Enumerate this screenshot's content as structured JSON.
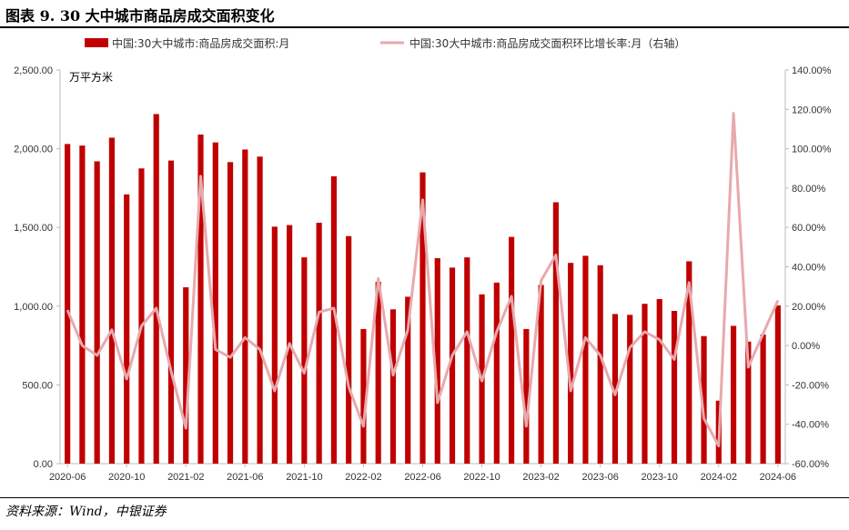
{
  "header": {
    "title": "图表 9. 30 大中城市商品房成交面积变化"
  },
  "footer": {
    "source": "资料来源：Wind，中银证券"
  },
  "chart_data": {
    "type": "bar",
    "unit_label": "万平方米",
    "series": [
      {
        "name": "中国:30大中城市:商品房成交面积:月",
        "type": "bar",
        "axis": "left",
        "color": "#C00000",
        "values": [
          2030,
          2020,
          1920,
          2070,
          1710,
          1875,
          2220,
          1925,
          1120,
          2090,
          2040,
          1915,
          1995,
          1950,
          1505,
          1515,
          1310,
          1530,
          1825,
          1445,
          855,
          1155,
          980,
          1060,
          1850,
          1305,
          1245,
          1310,
          1075,
          1150,
          1440,
          855,
          1135,
          1660,
          1275,
          1320,
          1260,
          950,
          945,
          1015,
          1045,
          970,
          1285,
          810,
          400,
          875,
          775,
          820,
          1005
        ]
      },
      {
        "name": "中国:30大中城市:商品房成交面积环比增长率:月（右轴）",
        "type": "line",
        "axis": "right",
        "color": "#E8A9AD",
        "values": [
          18,
          0,
          -5,
          8,
          -17,
          10,
          19,
          -13,
          -42,
          86,
          -2,
          -6,
          4,
          -2,
          -23,
          1,
          -14,
          17,
          19,
          -21,
          -41,
          34,
          -15,
          8,
          74,
          -29,
          -5,
          7,
          -18,
          7,
          25,
          -41,
          33,
          46,
          -23,
          4,
          -5,
          -25,
          -1,
          7,
          3,
          -7,
          32,
          -37,
          -51,
          118,
          -11,
          6,
          23
        ]
      }
    ],
    "x_ticks": [
      "2020-06",
      "2020-10",
      "2021-02",
      "2021-06",
      "2021-10",
      "2022-02",
      "2022-06",
      "2022-10",
      "2023-02",
      "2023-06",
      "2023-10",
      "2024-02",
      "2024-06"
    ],
    "left_axis": {
      "min": 0,
      "max": 2500,
      "ticks": [
        "0.00",
        "500.00",
        "1,000.00",
        "1,500.00",
        "2,000.00",
        "2,500.00"
      ]
    },
    "right_axis": {
      "min": -60,
      "max": 140,
      "ticks": [
        "-60.00%",
        "-40.00%",
        "-20.00%",
        "0.00%",
        "20.00%",
        "40.00%",
        "60.00%",
        "80.00%",
        "100.00%",
        "120.00%",
        "140.00%"
      ]
    },
    "legend_position": "top",
    "grid": false
  }
}
